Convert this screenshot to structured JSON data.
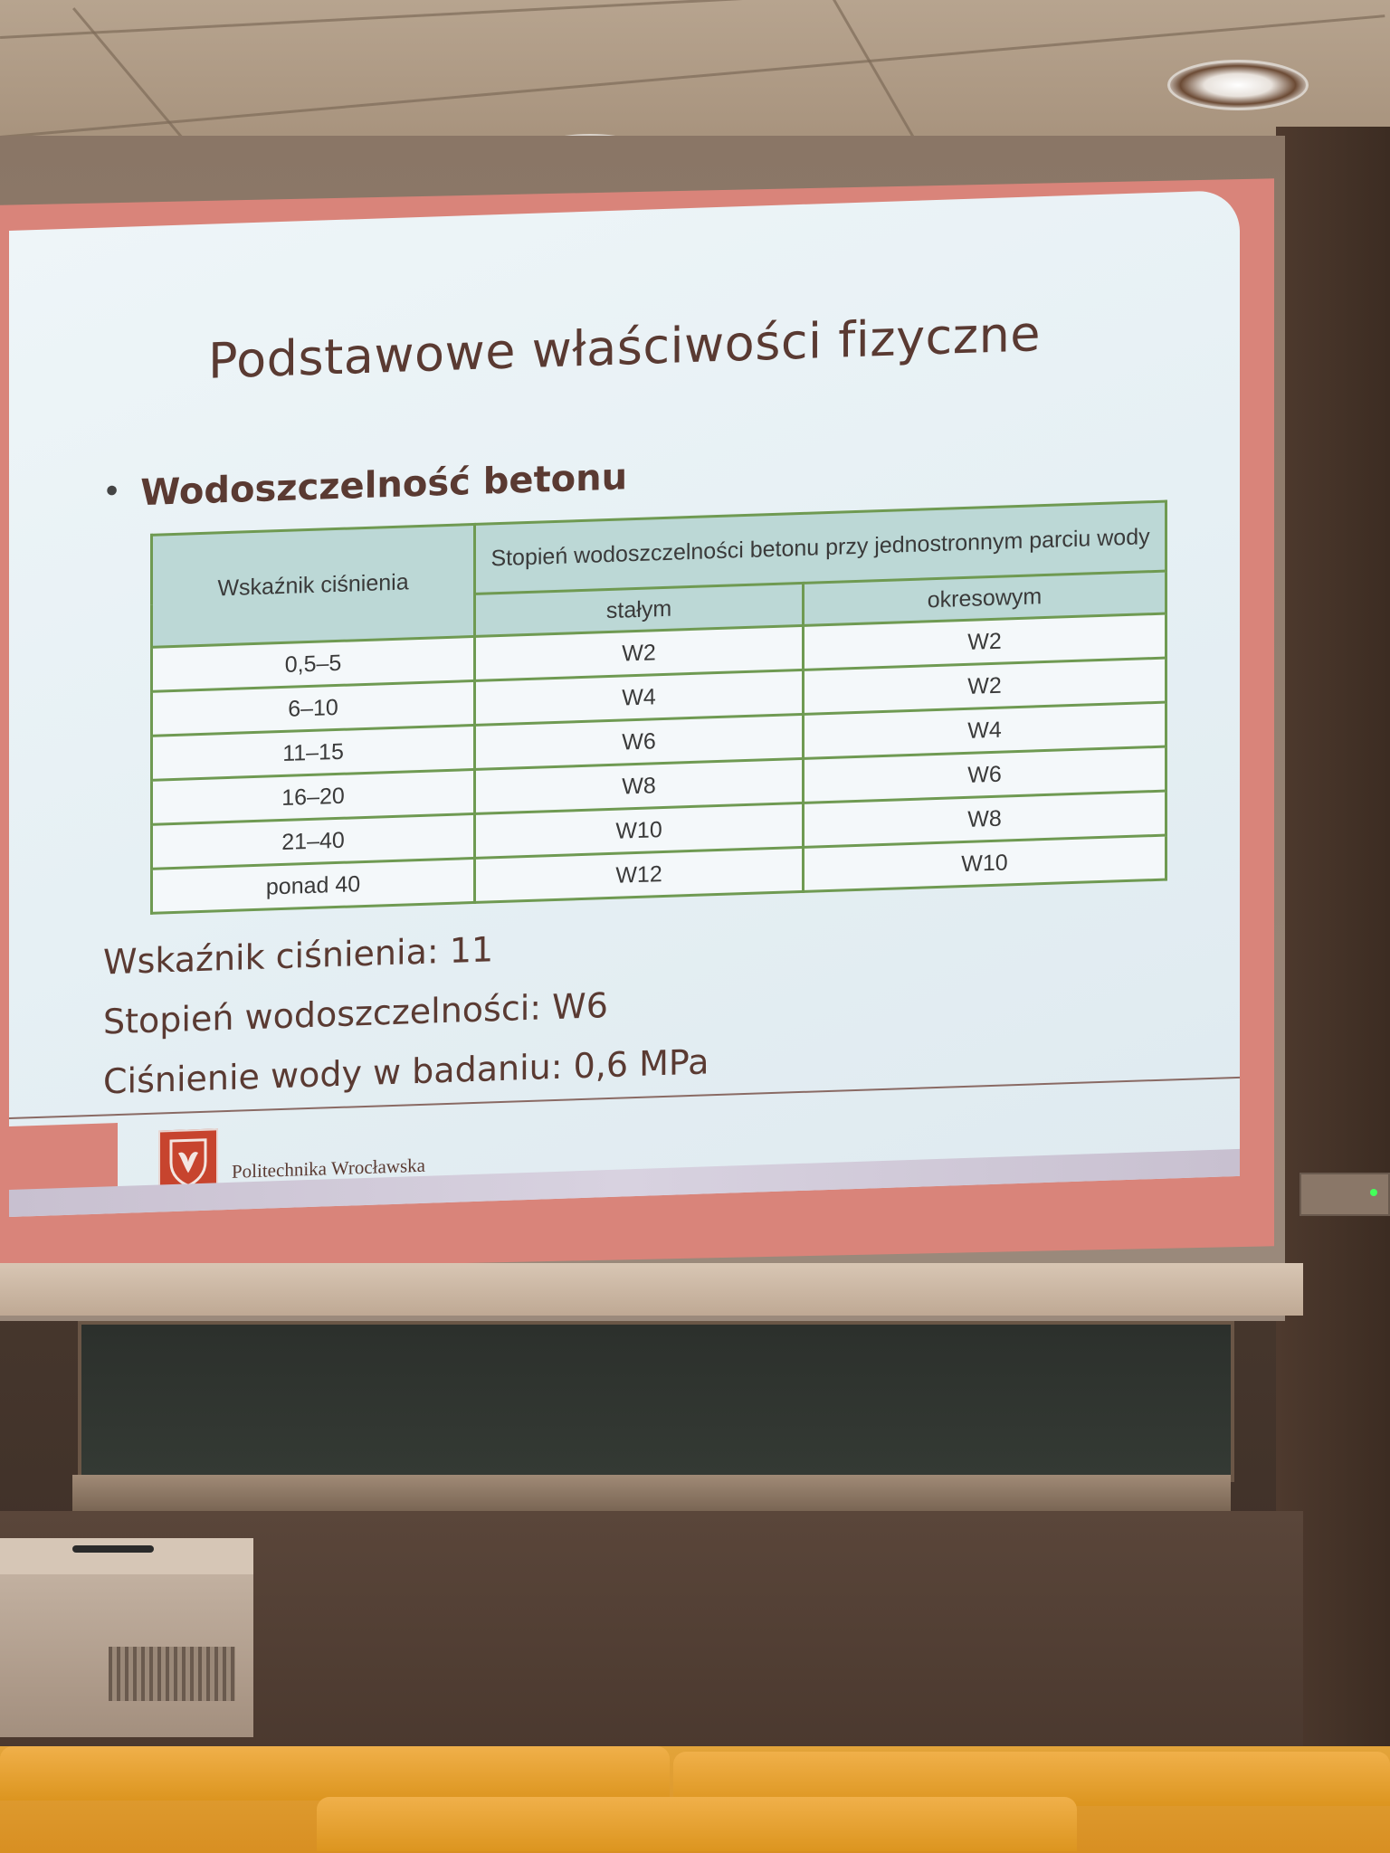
{
  "slide": {
    "title": "Podstawowe właściwości fizyczne",
    "bullet": "Wodoszczelność betonu",
    "table": {
      "header_index": "Wskaźnik ciśnienia",
      "header_group": "Stopień wodoszczelności betonu przy jednostronnym parciu wody",
      "header_constant": "stałym",
      "header_periodic": "okresowym",
      "rows": [
        {
          "index": "0,5–5",
          "constant": "W2",
          "periodic": "W2"
        },
        {
          "index": "6–10",
          "constant": "W4",
          "periodic": "W2"
        },
        {
          "index": "11–15",
          "constant": "W6",
          "periodic": "W4"
        },
        {
          "index": "16–20",
          "constant": "W8",
          "periodic": "W6"
        },
        {
          "index": "21–40",
          "constant": "W10",
          "periodic": "W8"
        },
        {
          "index": "ponad 40",
          "constant": "W12",
          "periodic": "W10"
        }
      ]
    },
    "lines": [
      "Wskaźnik ciśnienia: 11",
      "Stopień wodoszczelności: W6",
      "Ciśnienie wody w badaniu: 0,6 MPa"
    ],
    "footer_org": "Politechnika Wrocławska"
  },
  "colors": {
    "accent": "#d9847a",
    "table_border": "#6f9a52",
    "header_fill": "#bcd8d6",
    "text": "#5a3a32"
  }
}
